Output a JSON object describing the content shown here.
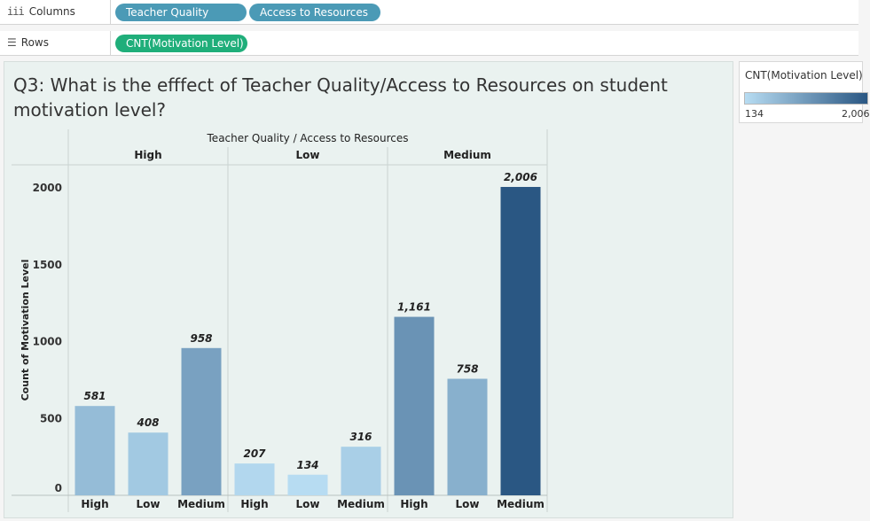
{
  "shelves": {
    "columns": {
      "label": "Columns",
      "pills": [
        "Teacher Quality",
        "Access to Resources"
      ]
    },
    "rows": {
      "label": "Rows",
      "pills": [
        "CNT(Motivation Level)"
      ]
    }
  },
  "legend": {
    "title": "CNT(Motivation Level)",
    "min": "134",
    "max": "2,006",
    "color_low": "#b7dcf2",
    "color_high": "#2a5783"
  },
  "colors": {
    "dimension_pill": "#4b9ab6",
    "measure_pill": "#1fae7a",
    "sheet_bg": "#eaf2f0"
  },
  "chart_data": {
    "type": "bar",
    "title": "Q3: What is the efffect  of Teacher Quality/Access to Resources on student motivation level?",
    "header": "Teacher Quality  /  Access to Resources",
    "ylabel": "Count of Motivation Level",
    "ylim": [
      0,
      2150
    ],
    "yticks": [
      0,
      500,
      1000,
      1500,
      2000
    ],
    "groups": [
      {
        "name": "High",
        "categories": [
          "High",
          "Low",
          "Medium"
        ],
        "values": [
          581,
          408,
          958
        ],
        "labels": [
          "581",
          "408",
          "958"
        ]
      },
      {
        "name": "Low",
        "categories": [
          "High",
          "Low",
          "Medium"
        ],
        "values": [
          207,
          134,
          316
        ],
        "labels": [
          "207",
          "134",
          "316"
        ]
      },
      {
        "name": "Medium",
        "categories": [
          "High",
          "Low",
          "Medium"
        ],
        "values": [
          1161,
          758,
          2006
        ],
        "labels": [
          "1,161",
          "758",
          "2,006"
        ]
      }
    ],
    "color_range": [
      134,
      2006
    ]
  }
}
